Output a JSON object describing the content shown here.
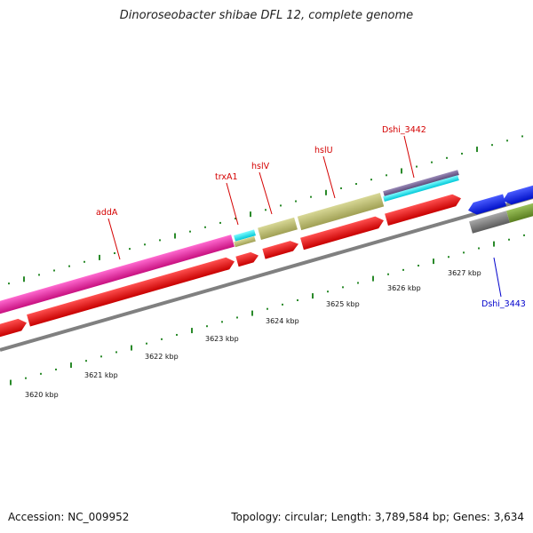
{
  "title": "Dinoroseobacter shibae DFL 12, complete genome",
  "footer": {
    "accession": "Accession: NC_009952",
    "summary": "Topology: circular; Length: 3,789,584 bp; Genes: 3,634"
  },
  "colors": {
    "ticks": "#2a8a2a",
    "label_red": "#d40000",
    "label_blue": "#0000cc",
    "backbone": "#8c8c8c"
  },
  "scale_labels": [
    "3620 kbp",
    "3621 kbp",
    "3622 kbp",
    "3623 kbp",
    "3624 kbp",
    "3625 kbp",
    "3626 kbp",
    "3627 kbp"
  ],
  "gene_labels": [
    {
      "name": "addA",
      "color": "#d40000"
    },
    {
      "name": "trxA1",
      "color": "#d40000"
    },
    {
      "name": "hslV",
      "color": "#d40000"
    },
    {
      "name": "hslU",
      "color": "#d40000"
    },
    {
      "name": "Dshi_3442",
      "color": "#d40000"
    },
    {
      "name": "Dshi_3443",
      "color": "#0000cc"
    }
  ]
}
